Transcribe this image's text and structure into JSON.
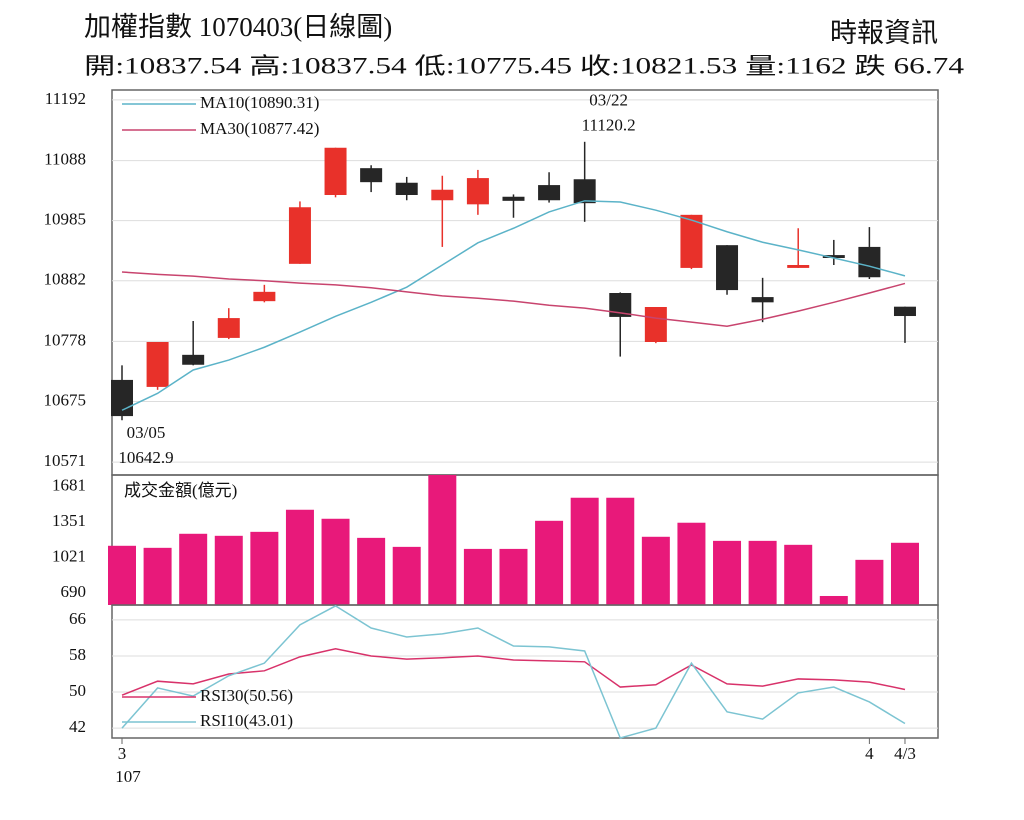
{
  "chart_data": [
    {
      "type": "candlestick",
      "title": "加權指數 1070403(日線圖)",
      "source": "時報資訊",
      "summary": "開:10837.54 高:10837.54 低:10775.45 收:10821.53 量:1162 跌 66.74",
      "open": [
        10712,
        10700,
        10755,
        10784,
        10847,
        10911,
        11029,
        11075,
        11050,
        11020,
        11013,
        11026,
        11046,
        11056,
        10861,
        10777,
        10904,
        10943,
        10854,
        10904,
        10926,
        10940,
        10837.54
      ],
      "high": [
        10737,
        10777,
        10813,
        10835,
        10875,
        11018,
        11110,
        11080,
        11060,
        11062,
        11072,
        11030,
        11068,
        11120.2,
        10862,
        10837,
        10995,
        10943,
        10887,
        10972,
        10952,
        10974,
        10837.54
      ],
      "low": [
        10642.9,
        10695,
        10737,
        10782,
        10845,
        10911,
        11025,
        11034,
        11020,
        10940,
        10995,
        10990,
        11016,
        10983,
        10752,
        10775,
        10902,
        10858,
        10811,
        10904,
        10909,
        10885,
        10775.45
      ],
      "close": [
        10650,
        10777,
        10738,
        10818,
        10863,
        11008,
        11110,
        11051,
        11029,
        11038,
        11058,
        11019,
        11020,
        11015,
        10820,
        10837,
        10995,
        10866,
        10845,
        10909,
        10921,
        10888,
        10821.53
      ],
      "up_color": "#e8312a",
      "down_color": "#262626",
      "series": [
        {
          "name": "MA10(10890.31)",
          "color": "#5bb3c8",
          "values": [
            10660,
            10689,
            10729,
            10746,
            10768,
            10794,
            10821,
            10845,
            10871,
            10909,
            10947,
            10972,
            11000,
            11019,
            11017,
            11003,
            10986,
            10966,
            10948,
            10935,
            10921,
            10907,
            10890.31
          ]
        },
        {
          "name": "MA30(10877.42)",
          "color": "#c8446e",
          "values": [
            10897,
            10893,
            10890,
            10885,
            10882,
            10878,
            10875,
            10870,
            10863,
            10856,
            10852,
            10847,
            10840,
            10835,
            10827,
            10818,
            10811,
            10804,
            10816,
            10830,
            10845,
            10861,
            10877.42
          ]
        }
      ],
      "annotations": [
        {
          "date": "03/05",
          "value": 10642.9
        },
        {
          "date": "03/22",
          "value": 11120.2
        }
      ],
      "ylim": [
        10549,
        11209
      ],
      "yticks": [
        10571,
        10675,
        10778,
        10882,
        10985,
        11088,
        11192
      ],
      "grid": true
    },
    {
      "type": "bar",
      "series": [
        {
          "name": "成交金額(億元)",
          "color": "#e8197a",
          "values": [
            1130,
            1111,
            1242,
            1223,
            1260,
            1466,
            1382,
            1204,
            1120,
            1790,
            1101,
            1101,
            1363,
            1578,
            1578,
            1214,
            1345,
            1176,
            1176,
            1139,
            662,
            999,
            1158
          ]
        }
      ],
      "ylim": [
        578,
        1790
      ],
      "yticks": [
        690,
        1021,
        1351,
        1681
      ],
      "grid": false
    },
    {
      "type": "line",
      "series": [
        {
          "name": "RSI30(50.56)",
          "color": "#d8326a",
          "values": [
            49.3,
            52.4,
            51.8,
            54,
            54.7,
            57.8,
            59.6,
            58,
            57.3,
            57.6,
            58,
            57.1,
            56.9,
            56.7,
            51.1,
            51.6,
            56,
            51.8,
            51.3,
            52.9,
            52.7,
            52.2,
            50.56
          ]
        },
        {
          "name": "RSI10(43.01)",
          "color": "#7cc4d2",
          "values": [
            42,
            50.9,
            49.1,
            53.6,
            56.4,
            64.9,
            69.1,
            64.2,
            62.2,
            62.9,
            64.2,
            60.2,
            60,
            59.1,
            39.8,
            42,
            56.4,
            45.6,
            44,
            49.8,
            51.1,
            47.8,
            43.01
          ]
        }
      ],
      "categories": [
        "3",
        null,
        null,
        null,
        null,
        null,
        null,
        null,
        null,
        null,
        null,
        null,
        null,
        null,
        null,
        null,
        null,
        null,
        null,
        null,
        null,
        "4",
        "4/3"
      ],
      "year_label": "107",
      "ylim": [
        39.8,
        69.3
      ],
      "yticks": [
        42,
        50,
        58,
        66
      ],
      "grid": true
    }
  ]
}
